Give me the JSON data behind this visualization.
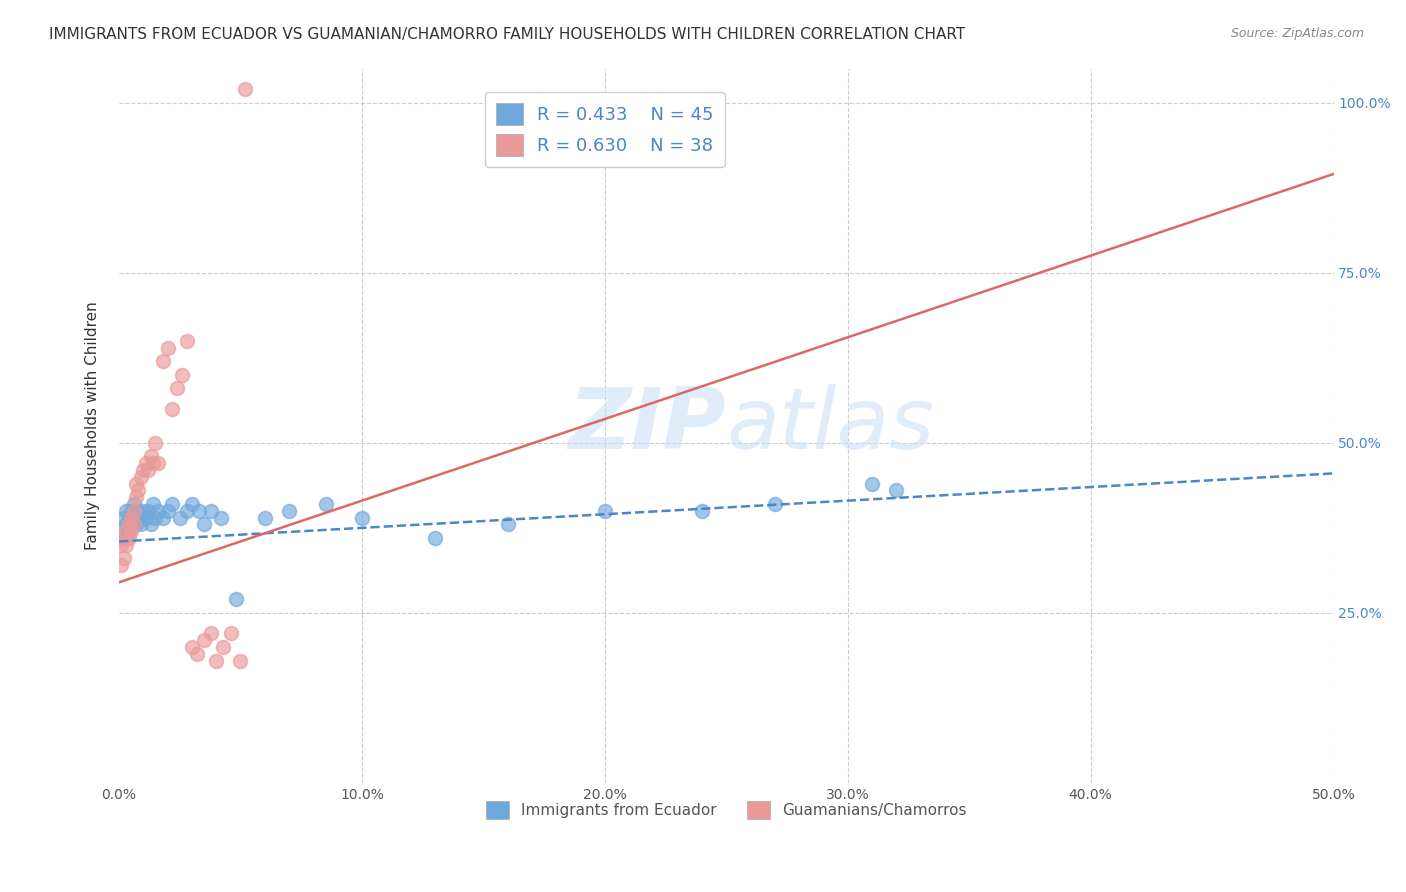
{
  "title": "IMMIGRANTS FROM ECUADOR VS GUAMANIAN/CHAMORRO FAMILY HOUSEHOLDS WITH CHILDREN CORRELATION CHART",
  "source": "Source: ZipAtlas.com",
  "ylabel": "Family Households with Children",
  "xlim": [
    0.0,
    0.5
  ],
  "ylim": [
    0.0,
    1.05
  ],
  "xticks": [
    0.0,
    0.1,
    0.2,
    0.3,
    0.4,
    0.5
  ],
  "yticks_right": [
    0.25,
    0.5,
    0.75,
    1.0
  ],
  "ytick_labels_right": [
    "25.0%",
    "50.0%",
    "75.0%",
    "100.0%"
  ],
  "xtick_labels": [
    "0.0%",
    "10.0%",
    "20.0%",
    "30.0%",
    "40.0%",
    "50.0%"
  ],
  "legend_r1": "R = 0.433",
  "legend_n1": "N = 45",
  "legend_r2": "R = 0.630",
  "legend_n2": "N = 38",
  "blue_color": "#6fa8dc",
  "pink_color": "#ea9999",
  "blue_line_color": "#4a86c8",
  "pink_line_color": "#e06666",
  "watermark_zip": "ZIP",
  "watermark_atlas": "atlas",
  "background_color": "#ffffff",
  "grid_color": "#cccccc",
  "title_fontsize": 11,
  "axis_label_fontsize": 11,
  "tick_fontsize": 10,
  "ecuador_x": [
    0.001,
    0.002,
    0.002,
    0.003,
    0.003,
    0.004,
    0.004,
    0.005,
    0.005,
    0.006,
    0.006,
    0.007,
    0.007,
    0.008,
    0.008,
    0.009,
    0.01,
    0.011,
    0.012,
    0.013,
    0.014,
    0.015,
    0.016,
    0.018,
    0.02,
    0.022,
    0.025,
    0.028,
    0.03,
    0.033,
    0.035,
    0.038,
    0.042,
    0.048,
    0.06,
    0.07,
    0.085,
    0.1,
    0.13,
    0.16,
    0.2,
    0.24,
    0.27,
    0.31,
    0.32
  ],
  "ecuador_y": [
    0.37,
    0.36,
    0.39,
    0.38,
    0.4,
    0.37,
    0.39,
    0.38,
    0.4,
    0.38,
    0.41,
    0.39,
    0.38,
    0.4,
    0.39,
    0.38,
    0.4,
    0.39,
    0.4,
    0.38,
    0.41,
    0.39,
    0.4,
    0.39,
    0.4,
    0.41,
    0.39,
    0.4,
    0.41,
    0.4,
    0.38,
    0.4,
    0.39,
    0.27,
    0.39,
    0.4,
    0.41,
    0.39,
    0.36,
    0.38,
    0.4,
    0.4,
    0.41,
    0.44,
    0.43
  ],
  "guam_x": [
    0.001,
    0.001,
    0.002,
    0.002,
    0.003,
    0.003,
    0.004,
    0.004,
    0.005,
    0.005,
    0.006,
    0.006,
    0.007,
    0.007,
    0.008,
    0.009,
    0.01,
    0.011,
    0.012,
    0.013,
    0.014,
    0.015,
    0.016,
    0.018,
    0.02,
    0.022,
    0.024,
    0.026,
    0.028,
    0.03,
    0.032,
    0.035,
    0.038,
    0.04,
    0.043,
    0.046,
    0.05,
    0.052
  ],
  "guam_y": [
    0.32,
    0.35,
    0.33,
    0.36,
    0.37,
    0.35,
    0.36,
    0.38,
    0.37,
    0.39,
    0.4,
    0.38,
    0.42,
    0.44,
    0.43,
    0.45,
    0.46,
    0.47,
    0.46,
    0.48,
    0.47,
    0.5,
    0.47,
    0.62,
    0.64,
    0.55,
    0.58,
    0.6,
    0.65,
    0.2,
    0.19,
    0.21,
    0.22,
    0.18,
    0.2,
    0.22,
    0.18,
    1.02
  ],
  "blue_line_y0": 0.355,
  "blue_line_y1": 0.455,
  "pink_line_y0": 0.295,
  "pink_line_y1": 0.895
}
